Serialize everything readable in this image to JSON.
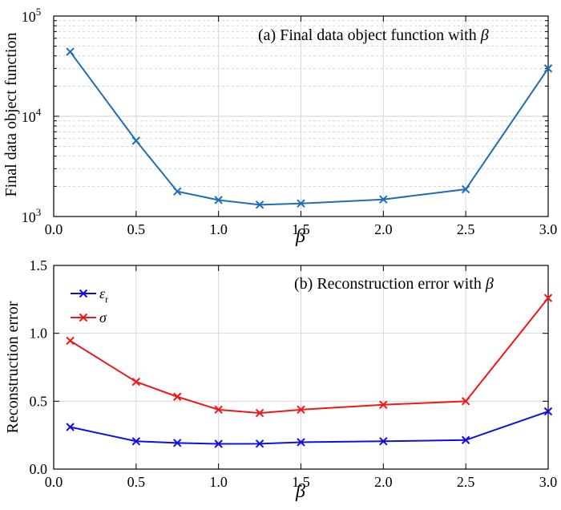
{
  "chart_data": [
    {
      "type": "line",
      "panel": "a",
      "title": "(a) Final data object function with ",
      "title_symbol": "β",
      "xlabel": "β",
      "ylabel": "Final data object function",
      "yscale": "log",
      "xlim": [
        0.0,
        3.0
      ],
      "ylim": [
        1000,
        100000
      ],
      "xticks": [
        "0.0",
        "0.5",
        "1.0",
        "1.5",
        "2.0",
        "2.5",
        "3.0"
      ],
      "yticks": [
        {
          "mantissa": "10",
          "exp": "3"
        },
        {
          "mantissa": "10",
          "exp": "4"
        },
        {
          "mantissa": "10",
          "exp": "5"
        }
      ],
      "series": [
        {
          "name": "",
          "color": "#1f6db5",
          "x": [
            0.1,
            0.5,
            0.75,
            1.0,
            1.25,
            1.5,
            2.0,
            2.5,
            3.0
          ],
          "values": [
            44000,
            5700,
            1780,
            1460,
            1310,
            1350,
            1480,
            1870,
            30000
          ]
        }
      ]
    },
    {
      "type": "line",
      "panel": "b",
      "title": "(b) Reconstruction error with ",
      "title_symbol": "β",
      "xlabel": "β",
      "ylabel": "Reconstruction error",
      "xlim": [
        0.0,
        3.0
      ],
      "ylim": [
        0.0,
        1.5
      ],
      "xticks": [
        "0.0",
        "0.5",
        "1.0",
        "1.5",
        "2.0",
        "2.5",
        "3.0"
      ],
      "yticks": [
        "0.0",
        "0.5",
        "1.0",
        "1.5"
      ],
      "legend_position": "top-left",
      "series": [
        {
          "name": "ε",
          "subscript": "r",
          "color": "#1010e0",
          "x": [
            0.1,
            0.5,
            0.75,
            1.0,
            1.25,
            1.5,
            2.0,
            2.5,
            3.0
          ],
          "values": [
            0.31,
            0.205,
            0.193,
            0.186,
            0.187,
            0.198,
            0.205,
            0.214,
            0.425
          ]
        },
        {
          "name": "σ",
          "subscript": "",
          "color": "#f01818",
          "x": [
            0.1,
            0.5,
            0.75,
            1.0,
            1.25,
            1.5,
            2.0,
            2.5,
            3.0
          ],
          "values": [
            0.945,
            0.643,
            0.533,
            0.438,
            0.413,
            0.438,
            0.474,
            0.5,
            1.26
          ]
        }
      ]
    }
  ]
}
